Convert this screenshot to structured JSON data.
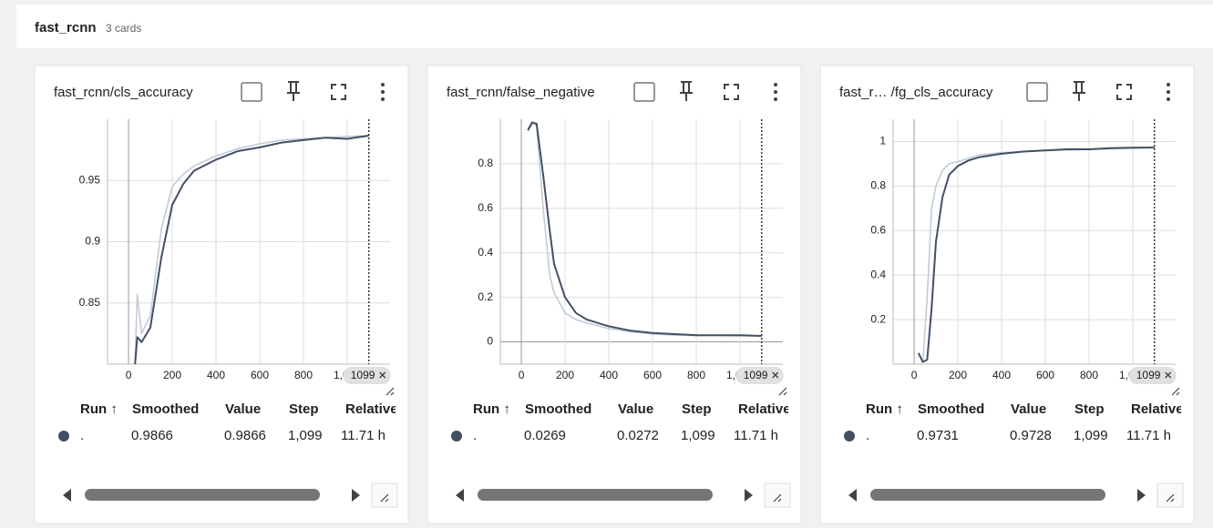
{
  "header": {
    "title": "fast_rcnn",
    "subtitle": "3 cards"
  },
  "chart_data": [
    {
      "type": "line",
      "title": "fast_rcnn/cls_accuracy",
      "x": [
        30,
        40,
        60,
        100,
        150,
        200,
        250,
        300,
        400,
        500,
        600,
        700,
        800,
        900,
        1000,
        1099
      ],
      "series": [
        {
          "color": "#c4cbd6",
          "values": [
            0.8,
            0.857,
            0.825,
            0.84,
            0.91,
            0.945,
            0.955,
            0.962,
            0.97,
            0.976,
            0.98,
            0.983,
            0.984,
            0.985,
            0.986,
            0.9866
          ]
        },
        {
          "color": "#425066",
          "values": [
            0.8,
            0.822,
            0.818,
            0.83,
            0.887,
            0.93,
            0.947,
            0.958,
            0.967,
            0.974,
            0.977,
            0.981,
            0.983,
            0.985,
            0.984,
            0.9866
          ]
        }
      ],
      "xlim": [
        -96,
        1196
      ],
      "ylim": [
        0.8,
        1.0
      ],
      "xticks": [
        0,
        200,
        400,
        600,
        800,
        {
          "value": 1000,
          "label": "1,000"
        }
      ],
      "yticks": [
        0.85,
        0.9,
        0.95
      ],
      "grid": true
    },
    {
      "type": "line",
      "title": "fast_rcnn/false_negative",
      "x": [
        30,
        50,
        70,
        100,
        130,
        150,
        200,
        250,
        300,
        400,
        500,
        600,
        700,
        800,
        900,
        1000,
        1099
      ],
      "series": [
        {
          "color": "#c4cbd6",
          "values": [
            0.96,
            0.99,
            0.97,
            0.6,
            0.3,
            0.22,
            0.13,
            0.1,
            0.085,
            0.06,
            0.045,
            0.035,
            0.03,
            0.028,
            0.028,
            0.027,
            0.0272
          ]
        },
        {
          "color": "#425066",
          "values": [
            0.95,
            0.985,
            0.98,
            0.75,
            0.5,
            0.35,
            0.2,
            0.13,
            0.1,
            0.07,
            0.05,
            0.04,
            0.035,
            0.03,
            0.03,
            0.03,
            0.0269
          ]
        }
      ],
      "xlim": [
        -96,
        1196
      ],
      "ylim": [
        -0.1,
        1.0
      ],
      "xticks": [
        0,
        200,
        400,
        600,
        800,
        {
          "value": 1000,
          "label": "1,000"
        }
      ],
      "yticks": [
        0,
        0.2,
        0.4,
        0.6,
        0.8
      ],
      "grid": true
    },
    {
      "type": "line",
      "title": "fast_r… /fg_cls_accuracy",
      "x": [
        20,
        40,
        60,
        80,
        100,
        130,
        160,
        200,
        250,
        300,
        400,
        500,
        600,
        700,
        800,
        900,
        1000,
        1099
      ],
      "series": [
        {
          "color": "#c4cbd6",
          "values": [
            0.05,
            0.01,
            0.3,
            0.7,
            0.8,
            0.87,
            0.9,
            0.91,
            0.925,
            0.94,
            0.95,
            0.955,
            0.96,
            0.962,
            0.965,
            0.968,
            0.97,
            0.9728
          ]
        },
        {
          "color": "#425066",
          "values": [
            0.05,
            0.01,
            0.02,
            0.25,
            0.55,
            0.75,
            0.85,
            0.89,
            0.915,
            0.93,
            0.945,
            0.955,
            0.96,
            0.965,
            0.965,
            0.97,
            0.972,
            0.9731
          ]
        }
      ],
      "xlim": [
        -96,
        1196
      ],
      "ylim": [
        0,
        1.1
      ],
      "xticks": [
        0,
        200,
        400,
        600,
        800,
        {
          "value": 1000,
          "label": "1,000"
        }
      ],
      "yticks": [
        0.2,
        0.4,
        0.6,
        0.8,
        1
      ],
      "grid": true
    }
  ],
  "cards": [
    {
      "step_label": "1099",
      "table": {
        "columns": [
          "Run ↑",
          "Smoothed",
          "Value",
          "Step",
          "Relative"
        ],
        "rows": [
          [
            ".",
            "0.9866",
            "0.9866",
            "1,099",
            "11.71 h"
          ]
        ]
      }
    },
    {
      "step_label": "1099",
      "table": {
        "columns": [
          "Run ↑",
          "Smoothed",
          "Value",
          "Step",
          "Relative"
        ],
        "rows": [
          [
            ".",
            "0.0269",
            "0.0272",
            "1,099",
            "11.71 h"
          ]
        ]
      }
    },
    {
      "step_label": "1099",
      "table": {
        "columns": [
          "Run ↑",
          "Smoothed",
          "Value",
          "Step",
          "Relative"
        ],
        "rows": [
          [
            ".",
            "0.9731",
            "0.9728",
            "1,099",
            "11.71 h"
          ]
        ]
      }
    }
  ]
}
